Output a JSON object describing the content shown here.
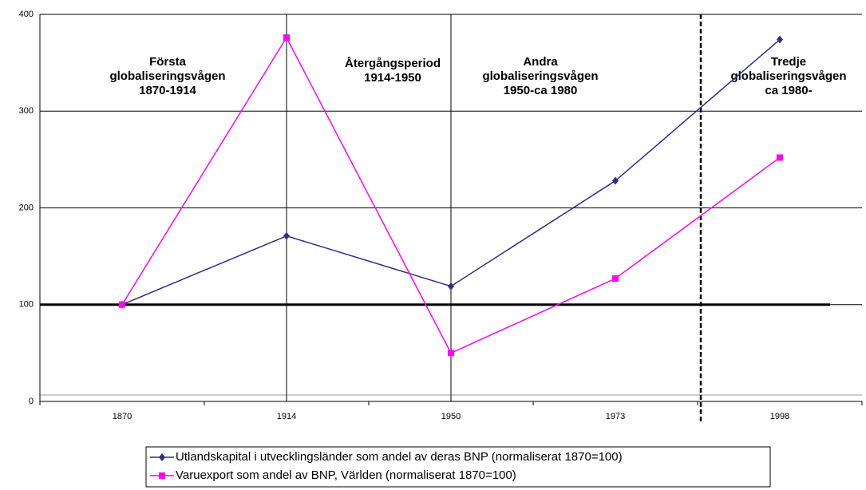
{
  "chart_data": {
    "type": "line",
    "categories": [
      "1870",
      "1914",
      "1950",
      "1973",
      "1998"
    ],
    "series": [
      {
        "name": "Utlandskapital i utvecklingsländer som andel av deras BNP (normaliserat 1870=100)",
        "color": "#2e2e8c",
        "marker": "diamond",
        "values": [
          100,
          171,
          119,
          228,
          374
        ]
      },
      {
        "name": "Varuexport som andel av BNP, Världen (normaliserat 1870=100)",
        "color": "#ff00ff",
        "marker": "square",
        "values": [
          100,
          376,
          50,
          127,
          252
        ]
      }
    ],
    "ylim": [
      0,
      400
    ],
    "yticks": [
      0,
      100,
      200,
      300,
      400
    ],
    "grid": true,
    "reference_line": 100,
    "legend": "bottom",
    "annotations": [
      {
        "lines": [
          "Första",
          "globaliseringsvågen",
          "1870-1914"
        ]
      },
      {
        "lines": [
          "Återgångsperiod",
          "1914-1950"
        ]
      },
      {
        "lines": [
          "Andra",
          "globaliseringsvågen",
          "1950-ca 1980"
        ]
      },
      {
        "lines": [
          "Tredje",
          "globaliseringsvågen",
          "ca 1980-"
        ]
      }
    ]
  }
}
